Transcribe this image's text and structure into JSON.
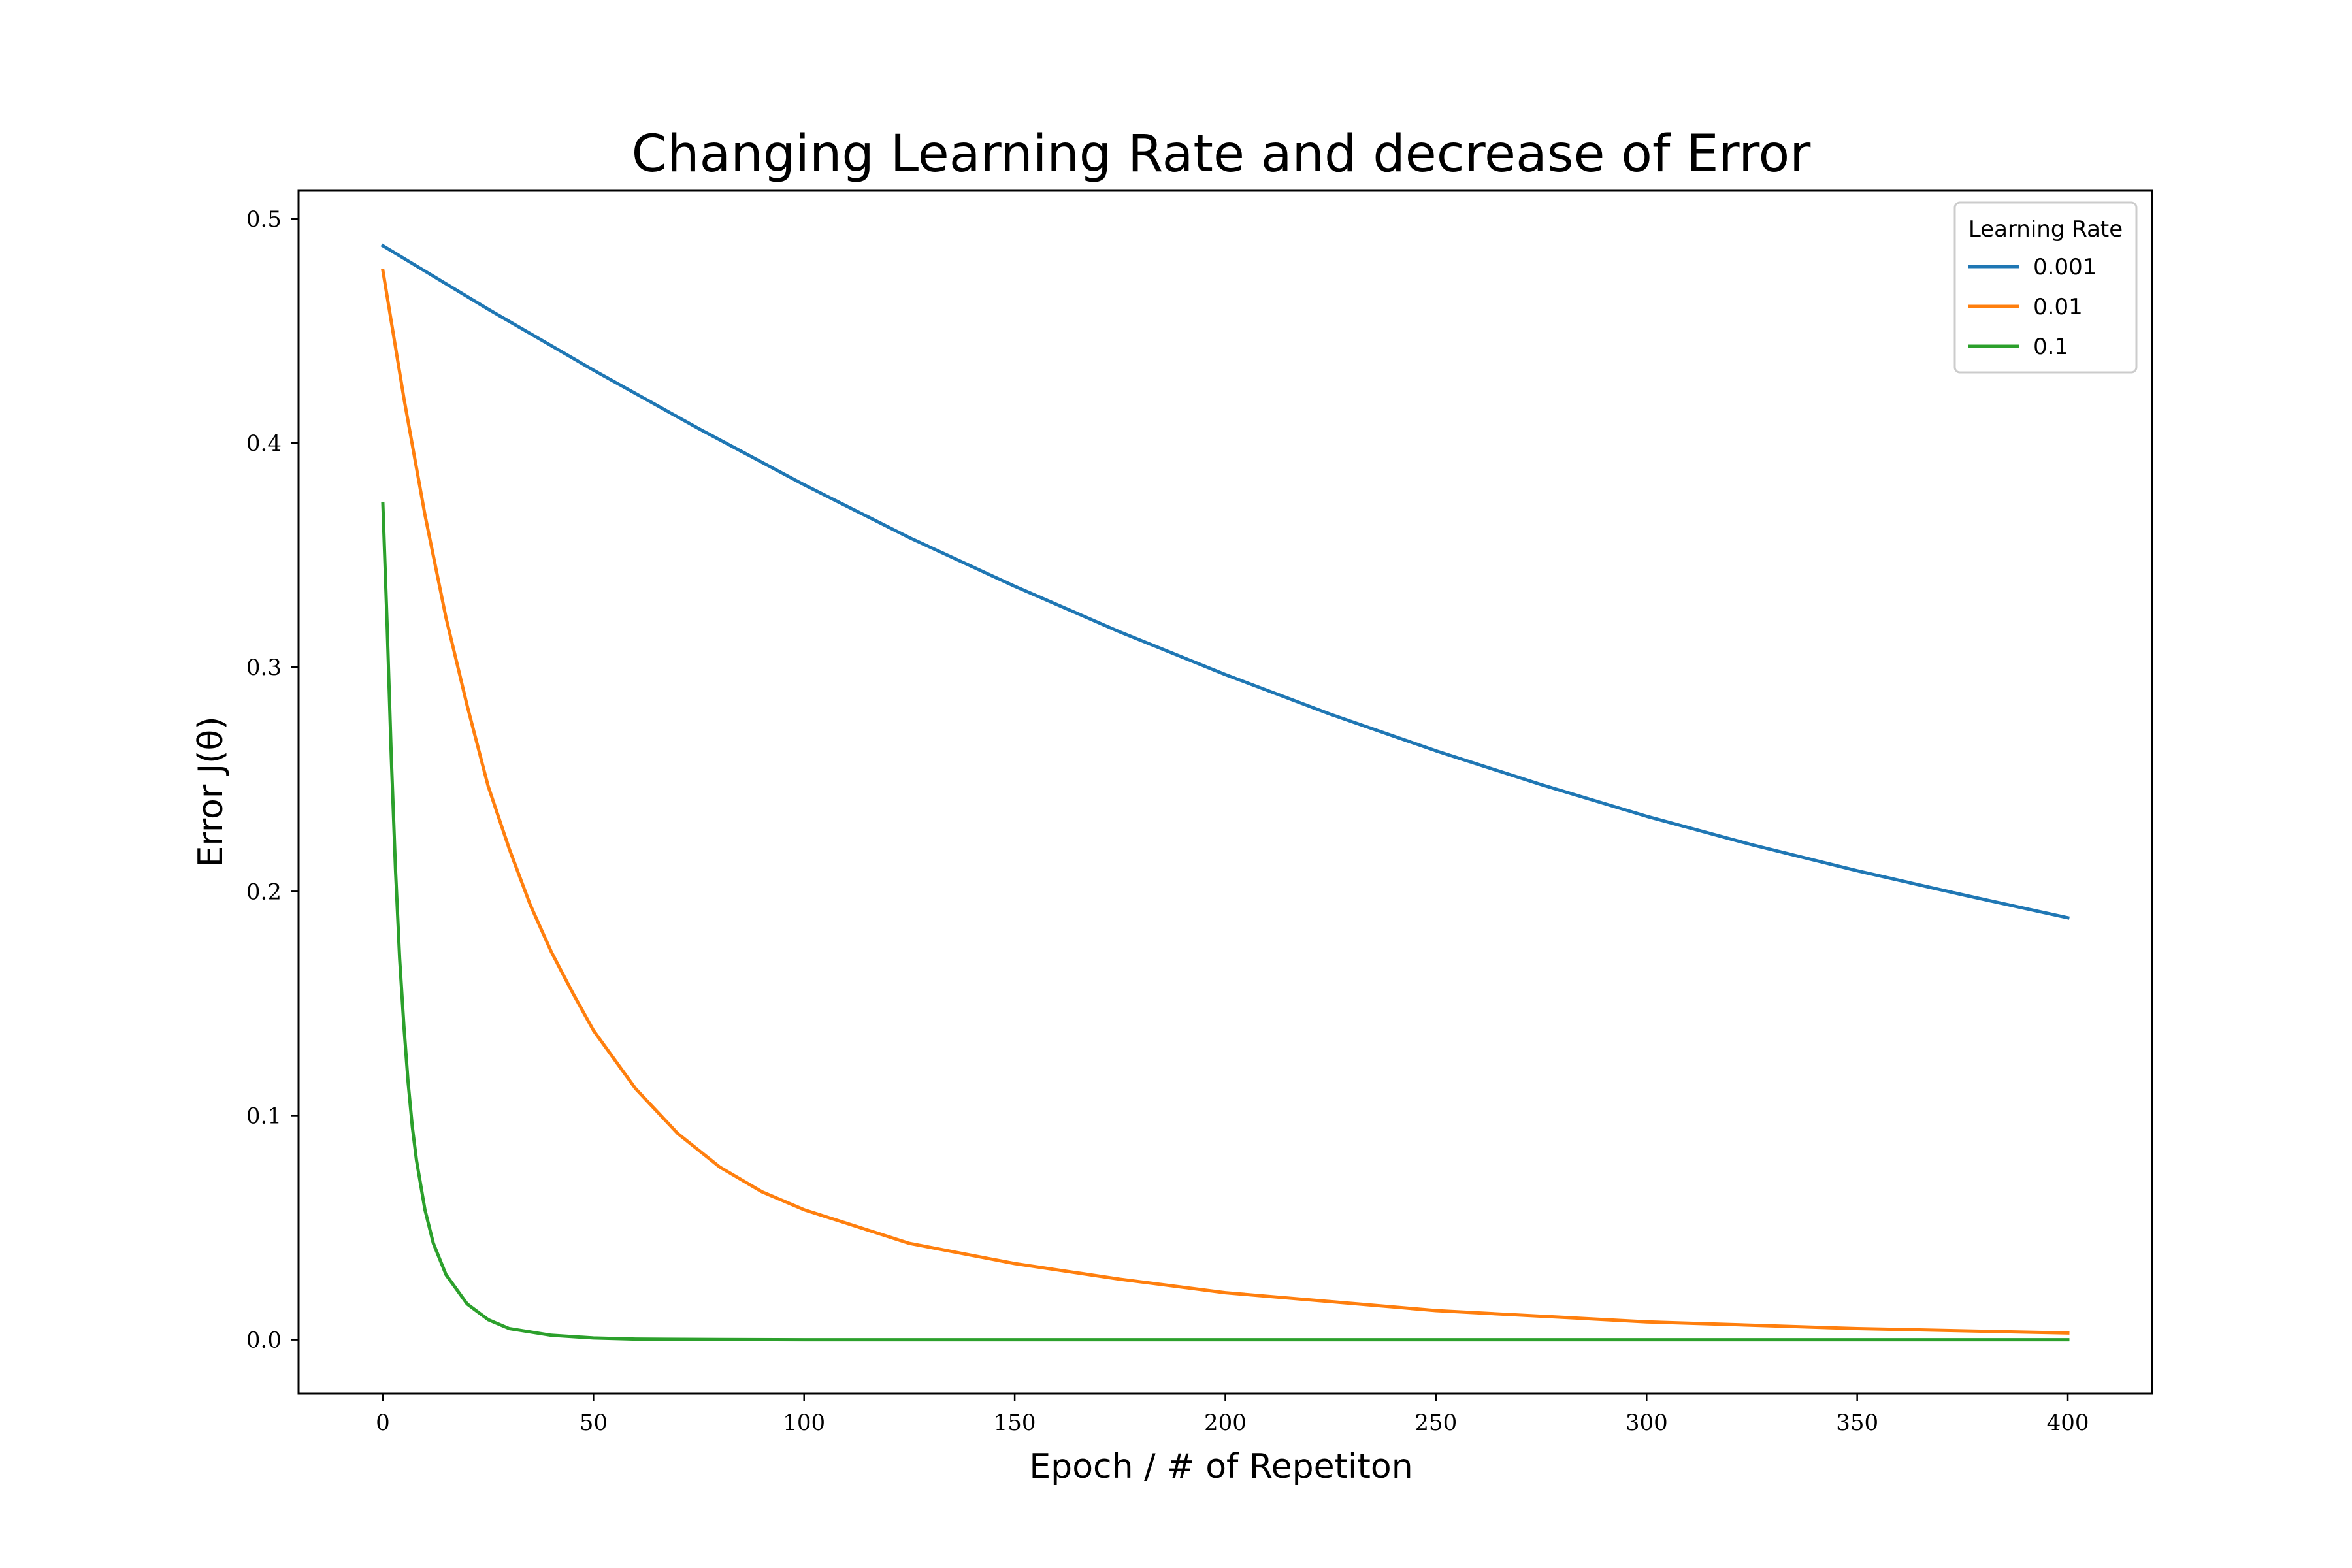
{
  "chart_data": {
    "type": "line",
    "title": "Changing Learning Rate and decrease of Error",
    "xlabel": "Epoch / # of Repetiton",
    "ylabel": "Error J(θ)",
    "xlim": [
      -20,
      420
    ],
    "ylim": [
      -0.024,
      0.5125
    ],
    "xticks": [
      0,
      50,
      100,
      150,
      200,
      250,
      300,
      350,
      400
    ],
    "yticks": [
      0.0,
      0.1,
      0.2,
      0.3,
      0.4,
      0.5
    ],
    "ytick_labels": [
      "0.0",
      "0.1",
      "0.2",
      "0.3",
      "0.4",
      "0.5"
    ],
    "grid": false,
    "legend": {
      "title": "Learning Rate",
      "position": "top-right"
    },
    "series": [
      {
        "name": "0.001",
        "color": "#1f77b4",
        "x": [
          0,
          25,
          50,
          75,
          100,
          125,
          150,
          175,
          200,
          225,
          250,
          275,
          300,
          325,
          350,
          375,
          400
        ],
        "y": [
          0.488,
          0.4597,
          0.4325,
          0.4064,
          0.3814,
          0.3578,
          0.3361,
          0.3157,
          0.2967,
          0.279,
          0.2627,
          0.2476,
          0.2335,
          0.2208,
          0.2092,
          0.1985,
          0.1882
        ]
      },
      {
        "name": "0.01",
        "color": "#ff7f0e",
        "x": [
          0,
          5,
          10,
          15,
          20,
          25,
          30,
          35,
          40,
          45,
          50,
          60,
          70,
          80,
          90,
          100,
          125,
          150,
          175,
          200,
          250,
          300,
          350,
          400
        ],
        "y": [
          0.477,
          0.42,
          0.368,
          0.322,
          0.283,
          0.247,
          0.219,
          0.194,
          0.173,
          0.155,
          0.138,
          0.112,
          0.092,
          0.077,
          0.066,
          0.058,
          0.043,
          0.034,
          0.027,
          0.021,
          0.013,
          0.008,
          0.005,
          0.003
        ]
      },
      {
        "name": "0.1",
        "color": "#2ca02c",
        "x": [
          0,
          1,
          2,
          3,
          4,
          5,
          6,
          7,
          8,
          10,
          12,
          15,
          20,
          25,
          30,
          40,
          50,
          60,
          80,
          100,
          200,
          300,
          400
        ],
        "y": [
          0.373,
          0.32,
          0.26,
          0.21,
          0.17,
          0.14,
          0.115,
          0.095,
          0.08,
          0.058,
          0.043,
          0.029,
          0.016,
          0.009,
          0.005,
          0.002,
          0.0008,
          0.0003,
          0.0001,
          0.0,
          0.0,
          0.0,
          0.0
        ]
      }
    ]
  }
}
